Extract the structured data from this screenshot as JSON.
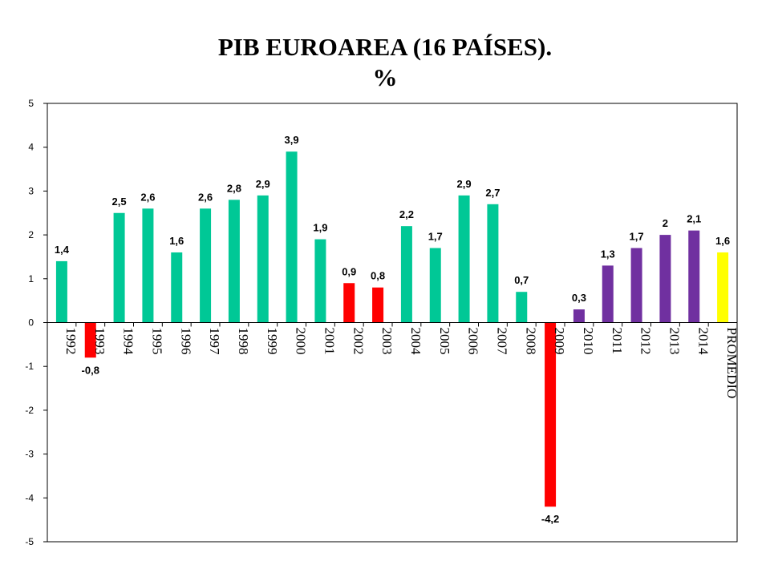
{
  "chart_data": {
    "type": "bar",
    "title": "PIB EUROAREA (16 PAÍSES).",
    "subtitle": "%",
    "xlabel": "",
    "ylabel": "",
    "ylim": [
      -5,
      5
    ],
    "yticks": [
      5,
      4,
      3,
      2,
      1,
      0,
      -1,
      -2,
      -3,
      -4,
      -5
    ],
    "grid": false,
    "legend": "none",
    "categories": [
      "1992",
      "1993",
      "1994",
      "1995",
      "1996",
      "1997",
      "1998",
      "1999",
      "2000",
      "2001",
      "2002",
      "2003",
      "2004",
      "2005",
      "2006",
      "2007",
      "2008",
      "2009",
      "2010",
      "2011",
      "2012",
      "2013",
      "2014",
      "PROMEDIO"
    ],
    "values": [
      1.4,
      -0.8,
      2.5,
      2.6,
      1.6,
      2.6,
      2.8,
      2.9,
      3.9,
      1.9,
      0.9,
      0.8,
      2.2,
      1.7,
      2.9,
      2.7,
      0.7,
      -4.2,
      0.3,
      1.3,
      1.7,
      2,
      2.1,
      1.6
    ],
    "data_labels": [
      "1,4",
      "-0,8",
      "2,5",
      "2,6",
      "1,6",
      "2,6",
      "2,8",
      "2,9",
      "3,9",
      "1,9",
      "0,9",
      "0,8",
      "2,2",
      "1,7",
      "2,9",
      "2,7",
      "0,7",
      "-4,2",
      "0,3",
      "1,3",
      "1,7",
      "2",
      "2,1",
      "1,6"
    ],
    "bar_colors": [
      "#00c896",
      "#ff0000",
      "#00c896",
      "#00c896",
      "#00c896",
      "#00c896",
      "#00c896",
      "#00c896",
      "#00c896",
      "#00c896",
      "#ff0000",
      "#ff0000",
      "#00c896",
      "#00c896",
      "#00c896",
      "#00c896",
      "#00c896",
      "#ff0000",
      "#7030a0",
      "#7030a0",
      "#7030a0",
      "#7030a0",
      "#7030a0",
      "#ffff00"
    ]
  }
}
